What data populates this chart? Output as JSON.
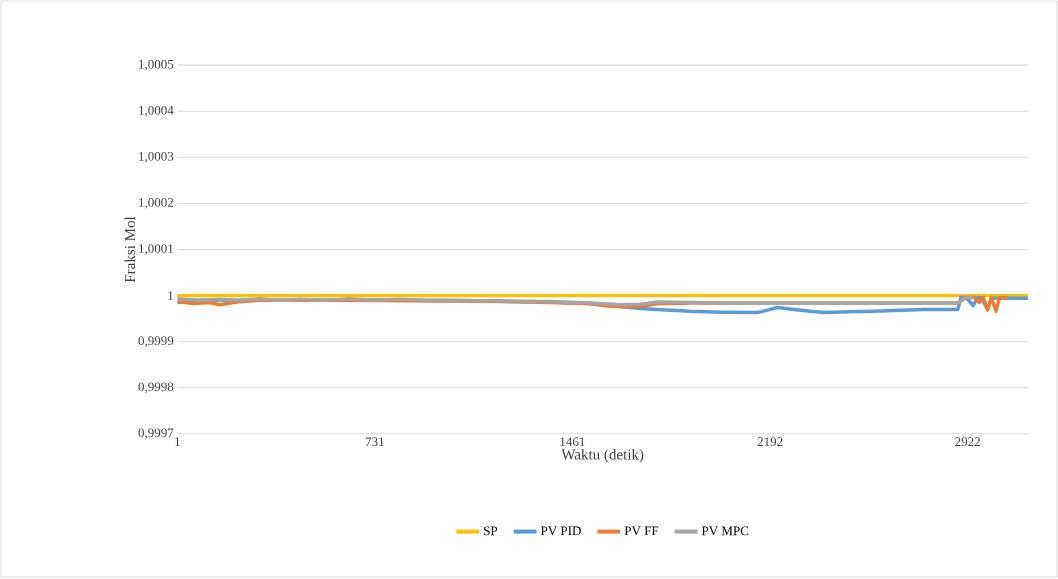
{
  "chart_data": {
    "type": "line",
    "xlabel": "Waktu (detik)",
    "ylabel": "Fraksi Mol",
    "xlim": [
      1,
      3145
    ],
    "xticks": [
      1,
      731,
      1461,
      2192,
      2922
    ],
    "ylim": [
      0.9997,
      1.0005
    ],
    "yticks": [
      {
        "value": 0.9997,
        "label": "0,9997"
      },
      {
        "value": 0.9998,
        "label": "0,9998"
      },
      {
        "value": 0.9999,
        "label": "0,9999"
      },
      1,
      {
        "value": 1.0001,
        "label": "1,0001"
      },
      {
        "value": 1.0002,
        "label": "1,0002"
      },
      {
        "value": 1.0003,
        "label": "1,0003"
      },
      {
        "value": 1.0004,
        "label": "1,0004"
      },
      {
        "value": 1.0005,
        "label": "1,0005"
      }
    ],
    "grid": "y",
    "legend": "bottom",
    "marker": "none",
    "line_style": "solid",
    "series": [
      {
        "name": "SP",
        "color": "#ffc000",
        "x": [
          1,
          3145
        ],
        "values": [
          1,
          1
        ]
      },
      {
        "name": "PV PID",
        "color": "#5b9bd5",
        "x": [
          1,
          82,
          157,
          305,
          453,
          638,
          823,
          1008,
          1194,
          1379,
          1527,
          1638,
          1712,
          1775,
          1897,
          2008,
          2145,
          2219,
          2304,
          2390,
          2490,
          2575,
          2675,
          2760,
          2886,
          2897,
          2916,
          2942,
          2960,
          2971,
          2997,
          3010,
          3145
        ],
        "values": [
          0.999985,
          0.99999,
          0.99999,
          0.99999,
          0.99999,
          0.99999,
          0.99999,
          0.999989,
          0.999988,
          0.999986,
          0.999983,
          0.999976,
          0.999972,
          0.99997,
          0.999966,
          0.999964,
          0.999963,
          0.999974,
          0.999968,
          0.999963,
          0.999965,
          0.999966,
          0.999968,
          0.99997,
          0.99997,
          0.999996,
          0.999996,
          0.999978,
          0.999996,
          0.999996,
          0.99997,
          0.999994,
          0.999994
        ]
      },
      {
        "name": "PV FF",
        "color": "#ed7d31",
        "x": [
          1,
          60,
          120,
          157,
          220,
          305,
          453,
          638,
          823,
          1008,
          1194,
          1379,
          1527,
          1600,
          1638,
          1712,
          1775,
          1897,
          2008,
          2145,
          2390,
          2675,
          2886,
          2916,
          2950,
          2965,
          2980,
          2995,
          3010,
          3027,
          3040,
          3055,
          3071
        ],
        "values": [
          0.999987,
          0.999983,
          0.999985,
          0.99998,
          0.999986,
          0.99999,
          0.99999,
          0.99999,
          0.999989,
          0.999988,
          0.999987,
          0.999985,
          0.999982,
          0.999977,
          0.999976,
          0.999977,
          0.999982,
          0.999984,
          0.999984,
          0.999984,
          0.999984,
          0.999984,
          0.999984,
          0.999996,
          0.999996,
          0.999985,
          0.999996,
          0.999969,
          0.999996,
          0.999966,
          0.999996,
          0.999996,
          0.999996
        ]
      },
      {
        "name": "PV MPC",
        "color": "#a5a5a5",
        "x": [
          1,
          82,
          157,
          230,
          305,
          380,
          453,
          550,
          638,
          730,
          823,
          920,
          1008,
          1194,
          1379,
          1527,
          1638,
          1712,
          1775,
          1897,
          2008,
          2145,
          2390,
          2675,
          2886,
          2916,
          2945
        ],
        "values": [
          0.999993,
          0.99999,
          0.999992,
          0.99999,
          0.999993,
          0.99999,
          0.999992,
          0.99999,
          0.999993,
          0.99999,
          0.999992,
          0.99999,
          0.99999,
          0.999988,
          0.999987,
          0.999984,
          0.99998,
          0.999981,
          0.999986,
          0.999985,
          0.999984,
          0.999984,
          0.999984,
          0.999984,
          0.999984,
          0.999996,
          0.999996
        ]
      }
    ]
  }
}
